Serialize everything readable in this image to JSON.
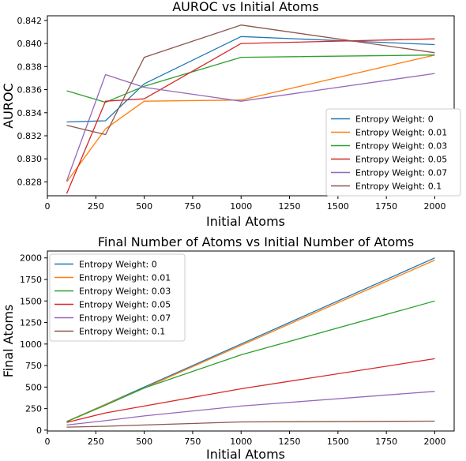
{
  "chart_data": [
    {
      "type": "line",
      "title": "AUROC vs Initial Atoms",
      "xlabel": "Initial Atoms",
      "ylabel": "AUROC",
      "xlim": [
        0,
        2100
      ],
      "ylim": [
        0.8268,
        0.8424
      ],
      "xticks": [
        0,
        250,
        500,
        750,
        1000,
        1250,
        1500,
        1750,
        2000
      ],
      "yticks": [
        0.828,
        0.83,
        0.832,
        0.834,
        0.836,
        0.838,
        0.84,
        0.842
      ],
      "ytick_labels": [
        "0.828",
        "0.830",
        "0.832",
        "0.834",
        "0.836",
        "0.838",
        "0.840",
        "0.842"
      ],
      "legend_position": "lower-right",
      "x": [
        100,
        300,
        500,
        1000,
        2000
      ],
      "series": [
        {
          "name": "Entropy Weight: 0",
          "color": "#1f77b4",
          "values": [
            0.8332,
            0.8333,
            0.8365,
            0.8406,
            0.8399
          ]
        },
        {
          "name": "Entropy Weight: 0.01",
          "color": "#ff7f0e",
          "values": [
            0.828,
            0.8326,
            0.835,
            0.8351,
            0.839
          ]
        },
        {
          "name": "Entropy Weight: 0.03",
          "color": "#2ca02c",
          "values": [
            0.8359,
            0.8349,
            0.8363,
            0.8388,
            0.839
          ]
        },
        {
          "name": "Entropy Weight: 0.05",
          "color": "#d62728",
          "values": [
            0.827,
            0.835,
            0.8352,
            0.84,
            0.8404
          ]
        },
        {
          "name": "Entropy Weight: 0.07",
          "color": "#9467bd",
          "values": [
            0.8281,
            0.8373,
            0.8362,
            0.835,
            0.8374
          ]
        },
        {
          "name": "Entropy Weight: 0.1",
          "color": "#8c564b",
          "values": [
            0.8329,
            0.8321,
            0.8388,
            0.8416,
            0.8392
          ]
        }
      ]
    },
    {
      "type": "line",
      "title": "Final Number of Atoms vs Initial Number of Atoms",
      "xlabel": "Initial Atoms",
      "ylabel": "Final Atoms",
      "xlim": [
        0,
        2100
      ],
      "ylim": [
        -10,
        2080
      ],
      "xticks": [
        0,
        250,
        500,
        750,
        1000,
        1250,
        1500,
        1750,
        2000
      ],
      "yticks": [
        0,
        250,
        500,
        750,
        1000,
        1250,
        1500,
        1750,
        2000
      ],
      "ytick_labels": [
        "0",
        "250",
        "500",
        "750",
        "1000",
        "1250",
        "1500",
        "1750",
        "2000"
      ],
      "legend_position": "upper-left",
      "x": [
        100,
        300,
        500,
        1000,
        2000
      ],
      "series": [
        {
          "name": "Entropy Weight: 0",
          "color": "#1f77b4",
          "values": [
            100,
            300,
            500,
            1000,
            2000
          ]
        },
        {
          "name": "Entropy Weight: 0.01",
          "color": "#ff7f0e",
          "values": [
            100,
            297,
            490,
            985,
            1975
          ]
        },
        {
          "name": "Entropy Weight: 0.03",
          "color": "#2ca02c",
          "values": [
            98,
            290,
            490,
            875,
            1500
          ]
        },
        {
          "name": "Entropy Weight: 0.05",
          "color": "#d62728",
          "values": [
            90,
            200,
            280,
            480,
            830
          ]
        },
        {
          "name": "Entropy Weight: 0.07",
          "color": "#9467bd",
          "values": [
            60,
            110,
            165,
            280,
            450
          ]
        },
        {
          "name": "Entropy Weight: 0.1",
          "color": "#8c564b",
          "values": [
            35,
            45,
            60,
            95,
            105
          ]
        }
      ]
    }
  ]
}
